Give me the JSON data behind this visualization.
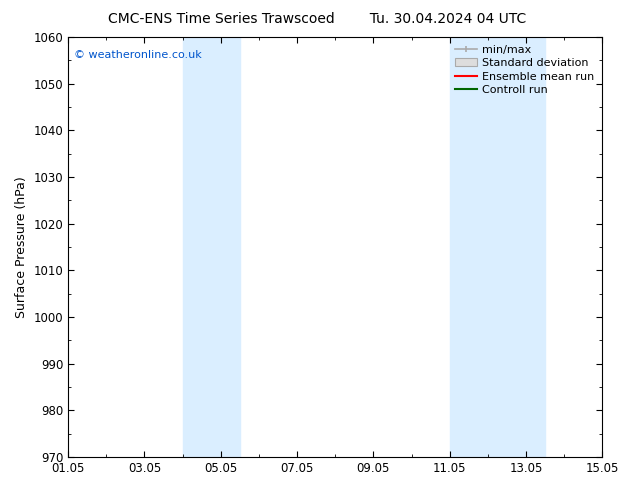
{
  "title_left": "CMC-ENS Time Series Trawscoed",
  "title_right": "Tu. 30.04.2024 04 UTC",
  "ylabel": "Surface Pressure (hPa)",
  "ylim": [
    970,
    1060
  ],
  "yticks": [
    970,
    980,
    990,
    1000,
    1010,
    1020,
    1030,
    1040,
    1050,
    1060
  ],
  "xlim": [
    0,
    14
  ],
  "xtick_labels": [
    "01.05",
    "03.05",
    "05.05",
    "07.05",
    "09.05",
    "11.05",
    "13.05",
    "15.05"
  ],
  "xtick_positions": [
    0,
    2,
    4,
    6,
    8,
    10,
    12,
    14
  ],
  "shaded_bands": [
    {
      "x_start": 3.0,
      "x_end": 4.5,
      "color": "#daeeff"
    },
    {
      "x_start": 10.0,
      "x_end": 12.5,
      "color": "#daeeff"
    }
  ],
  "watermark": "© weatheronline.co.uk",
  "watermark_color": "#0055cc",
  "background_color": "#ffffff",
  "title_fontsize": 10,
  "axis_label_fontsize": 9,
  "tick_fontsize": 8.5,
  "legend_fontsize": 8
}
